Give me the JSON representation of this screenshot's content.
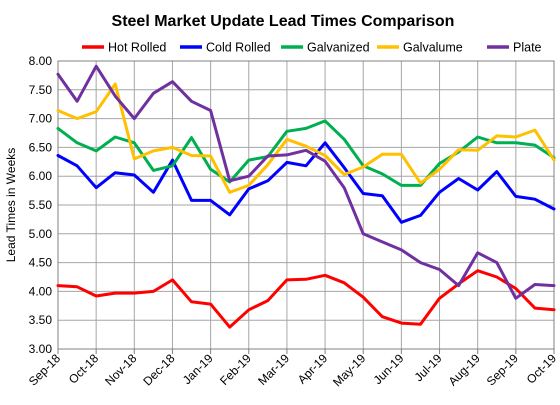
{
  "chart_data": {
    "type": "line",
    "title": "Steel Market Update Lead Times Comparison",
    "ylabel": "Lead Times in Weeks",
    "xlabel": "",
    "ylim": [
      3.0,
      8.0
    ],
    "yticks": [
      "3.00",
      "3.50",
      "4.00",
      "4.50",
      "5.00",
      "5.50",
      "6.00",
      "6.50",
      "7.00",
      "7.50",
      "8.00"
    ],
    "xtick_labels": [
      "Sep-18",
      "Oct-18",
      "Nov-18",
      "Dec-18",
      "Jan-19",
      "Feb-19",
      "Mar-19",
      "Apr-19",
      "May-19",
      "Jun-19",
      "Jul-19",
      "Aug-19",
      "Sep-19",
      "Oct-19"
    ],
    "grid": true,
    "legend_position": "top",
    "series": [
      {
        "name": "Hot Rolled",
        "color": "#ff0000",
        "values": [
          4.1,
          4.08,
          3.92,
          3.97,
          3.97,
          4.0,
          4.2,
          3.82,
          3.78,
          3.38,
          3.68,
          3.84,
          4.2,
          4.21,
          4.28,
          4.15,
          3.9,
          3.56,
          3.45,
          3.43,
          3.88,
          4.13,
          4.36,
          4.25,
          4.05,
          3.71,
          3.68
        ]
      },
      {
        "name": "Cold Rolled",
        "color": "#0000ff",
        "values": [
          6.36,
          6.18,
          5.8,
          6.06,
          6.02,
          5.72,
          6.28,
          5.58,
          5.58,
          5.33,
          5.78,
          5.92,
          6.24,
          6.18,
          6.58,
          6.15,
          5.7,
          5.66,
          5.2,
          5.32,
          5.72,
          5.96,
          5.76,
          6.08,
          5.65,
          5.6,
          5.43
        ]
      },
      {
        "name": "Galvanized",
        "color": "#00b050",
        "values": [
          6.83,
          6.58,
          6.44,
          6.68,
          6.58,
          6.1,
          6.18,
          6.67,
          6.12,
          5.9,
          6.28,
          6.34,
          6.78,
          6.83,
          6.96,
          6.64,
          6.18,
          6.04,
          5.84,
          5.84,
          6.22,
          6.42,
          6.68,
          6.58,
          6.58,
          6.54,
          6.32
        ]
      },
      {
        "name": "Galvalume",
        "color": "#ffc000",
        "values": [
          7.14,
          7.0,
          7.12,
          7.6,
          6.3,
          6.44,
          6.5,
          6.36,
          6.35,
          5.72,
          5.84,
          6.2,
          6.64,
          6.52,
          6.36,
          6.03,
          6.16,
          6.38,
          6.38,
          5.88,
          6.12,
          6.46,
          6.45,
          6.7,
          6.68,
          6.8,
          6.28
        ]
      },
      {
        "name": "Plate",
        "color": "#7030a0",
        "values": [
          7.77,
          7.3,
          7.91,
          7.39,
          7.0,
          7.44,
          7.64,
          7.3,
          7.14,
          5.92,
          6.0,
          6.35,
          6.37,
          6.45,
          6.26,
          5.8,
          5.0,
          4.86,
          4.72,
          4.5,
          4.38,
          4.1,
          4.67,
          4.5,
          3.88,
          4.12,
          4.1
        ]
      }
    ]
  }
}
